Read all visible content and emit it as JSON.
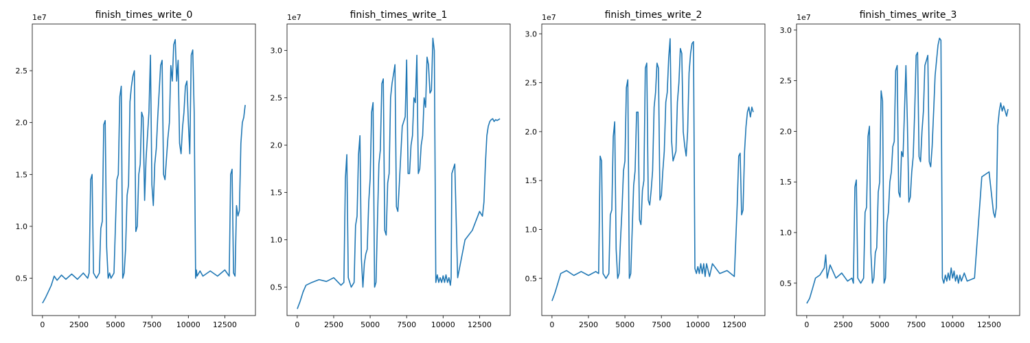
{
  "chart_data": [
    {
      "type": "line",
      "title": "finish_times_write_0",
      "xlim": [
        -700,
        14600
      ],
      "ylim": [
        1400000,
        29500000
      ],
      "xticks": [
        0,
        2500,
        5000,
        7500,
        10000,
        12500
      ],
      "xtick_labels": [
        "0",
        "2500",
        "5000",
        "7500",
        "10000",
        "12500"
      ],
      "yticks": [
        5000000,
        10000000,
        15000000,
        20000000,
        25000000
      ],
      "ytick_labels": [
        "0.5",
        "1.0",
        "1.5",
        "2.0",
        "2.5"
      ],
      "y_offset_label": "1e7",
      "color": "#1f77b4",
      "series": [
        {
          "x": [
            0,
            200,
            400,
            600,
            800,
            1000,
            1300,
            1600,
            2000,
            2400,
            2800,
            3100,
            3200,
            3300,
            3400,
            3500,
            3700,
            3900,
            4000,
            4100,
            4200,
            4300,
            4400,
            4500,
            4600,
            4700,
            4900,
            5100,
            5200,
            5300,
            5400,
            5500,
            5600,
            5700,
            5800,
            5900,
            6000,
            6100,
            6200,
            6300,
            6400,
            6500,
            6600,
            6700,
            6800,
            6900,
            7000,
            7100,
            7300,
            7400,
            7500,
            7600,
            7700,
            7800,
            7900,
            8000,
            8100,
            8200,
            8300,
            8400,
            8600,
            8700,
            8800,
            8900,
            9000,
            9100,
            9200,
            9300,
            9400,
            9500,
            9600,
            9700,
            9800,
            9900,
            10000,
            10100,
            10200,
            10300,
            10400,
            10500,
            10550,
            10600,
            10800,
            11000,
            11500,
            12000,
            12500,
            12800,
            12900,
            13000,
            13100,
            13200,
            13300,
            13400,
            13500,
            13600,
            13700,
            13800,
            13900
          ],
          "y": [
            2600000,
            3100000,
            3700000,
            4300000,
            5200000,
            4800000,
            5300000,
            4900000,
            5400000,
            4900000,
            5500000,
            5000000,
            5500000,
            14500000,
            15000000,
            5500000,
            5000000,
            5500000,
            9800000,
            10500000,
            19800000,
            20200000,
            8000000,
            5000000,
            5500000,
            5000000,
            5500000,
            14500000,
            15000000,
            22500000,
            23500000,
            5000000,
            5500000,
            7800000,
            13000000,
            14000000,
            22000000,
            23500000,
            24500000,
            25000000,
            9500000,
            10000000,
            15000000,
            16000000,
            21000000,
            20500000,
            12500000,
            16500000,
            21000000,
            26500000,
            14000000,
            12000000,
            16000000,
            17500000,
            20500000,
            23000000,
            25500000,
            26000000,
            15000000,
            14500000,
            18500000,
            20000000,
            25500000,
            24000000,
            27500000,
            28000000,
            24000000,
            26000000,
            18000000,
            17000000,
            19500000,
            21000000,
            23500000,
            24000000,
            20000000,
            17000000,
            26500000,
            27000000,
            21000000,
            5000000,
            5800000,
            5200000,
            5700000,
            5200000,
            5700000,
            5200000,
            5800000,
            5200000,
            15000000,
            15500000,
            5500000,
            5200000,
            12000000,
            11000000,
            11500000,
            18000000,
            20000000,
            20500000,
            21700000
          ]
        }
      ]
    },
    {
      "type": "line",
      "title": "finish_times_write_1",
      "xlim": [
        -700,
        14600
      ],
      "ylim": [
        2000000,
        32800000
      ],
      "xticks": [
        0,
        2500,
        5000,
        7500,
        10000,
        12500
      ],
      "xtick_labels": [
        "0",
        "2500",
        "5000",
        "7500",
        "10000",
        "12500"
      ],
      "yticks": [
        5000000,
        10000000,
        15000000,
        20000000,
        25000000,
        30000000
      ],
      "ytick_labels": [
        "0.5",
        "1.0",
        "1.5",
        "2.0",
        "2.5",
        "3.0"
      ],
      "y_offset_label": "1e7",
      "color": "#1f77b4",
      "series": [
        {
          "x": [
            0,
            200,
            400,
            600,
            1000,
            1500,
            2000,
            2500,
            3000,
            3200,
            3300,
            3400,
            3500,
            3700,
            3900,
            4000,
            4100,
            4200,
            4300,
            4400,
            4500,
            4600,
            4700,
            4800,
            4900,
            5000,
            5100,
            5200,
            5300,
            5400,
            5500,
            5600,
            5700,
            5800,
            5900,
            6000,
            6100,
            6200,
            6300,
            6400,
            6500,
            6600,
            6700,
            6800,
            6900,
            7000,
            7100,
            7200,
            7400,
            7500,
            7600,
            7700,
            7800,
            7900,
            8000,
            8100,
            8200,
            8300,
            8400,
            8500,
            8600,
            8700,
            8800,
            8900,
            9000,
            9100,
            9200,
            9300,
            9400,
            9500,
            9600,
            9700,
            9800,
            9900,
            10000,
            10100,
            10200,
            10300,
            10400,
            10500,
            10550,
            10600,
            10800,
            11000,
            11500,
            12000,
            12500,
            12700,
            12800,
            12900,
            13000,
            13100,
            13200,
            13300,
            13400,
            13500,
            13600,
            13700,
            13800,
            13900
          ],
          "y": [
            2700000,
            3500000,
            4500000,
            5200000,
            5500000,
            5800000,
            5600000,
            6000000,
            5200000,
            5500000,
            16500000,
            19000000,
            6000000,
            5000000,
            5500000,
            11500000,
            12500000,
            19000000,
            21000000,
            8000000,
            5000000,
            7500000,
            8500000,
            9000000,
            14000000,
            16500000,
            23500000,
            24500000,
            5000000,
            5500000,
            12000000,
            18000000,
            19500000,
            26500000,
            27000000,
            11000000,
            10500000,
            16000000,
            17000000,
            25000000,
            26500000,
            27500000,
            28500000,
            13500000,
            13000000,
            16000000,
            19000000,
            22000000,
            23000000,
            29000000,
            17000000,
            17000000,
            20000000,
            21000000,
            25000000,
            24500000,
            29500000,
            17000000,
            17500000,
            20000000,
            21000000,
            25000000,
            24000000,
            29300000,
            28500000,
            25500000,
            25800000,
            31300000,
            30000000,
            5500000,
            6300000,
            5500000,
            6000000,
            5500000,
            6200000,
            5500000,
            6300000,
            5500000,
            6000000,
            5200000,
            6000000,
            17000000,
            18000000,
            6000000,
            10000000,
            11000000,
            13000000,
            12500000,
            14000000,
            18000000,
            21000000,
            22000000,
            22500000,
            22700000,
            22800000,
            22500000,
            22700000,
            22600000,
            22700000,
            22800000
          ]
        }
      ]
    },
    {
      "type": "line",
      "title": "finish_times_write_2",
      "xlim": [
        -700,
        14600
      ],
      "ylim": [
        1200000,
        31000000
      ],
      "xticks": [
        0,
        2500,
        5000,
        7500,
        10000,
        12500
      ],
      "xtick_labels": [
        "0",
        "2500",
        "5000",
        "7500",
        "10000",
        "12500"
      ],
      "yticks": [
        5000000,
        10000000,
        15000000,
        20000000,
        25000000,
        30000000
      ],
      "ytick_labels": [
        "0.5",
        "1.0",
        "1.5",
        "2.0",
        "2.5",
        "3.0"
      ],
      "y_offset_label": "1e7",
      "color": "#1f77b4",
      "series": [
        {
          "x": [
            0,
            200,
            400,
            600,
            1000,
            1500,
            2000,
            2500,
            3000,
            3200,
            3300,
            3400,
            3500,
            3700,
            3900,
            4000,
            4100,
            4200,
            4300,
            4400,
            4500,
            4600,
            4700,
            4800,
            4900,
            5000,
            5100,
            5200,
            5300,
            5400,
            5500,
            5600,
            5700,
            5800,
            5900,
            6000,
            6100,
            6200,
            6300,
            6400,
            6500,
            6600,
            6700,
            6800,
            6900,
            7000,
            7100,
            7200,
            7300,
            7400,
            7500,
            7600,
            7700,
            7800,
            7900,
            8000,
            8100,
            8200,
            8300,
            8400,
            8500,
            8600,
            8700,
            8800,
            8900,
            9000,
            9100,
            9200,
            9300,
            9400,
            9500,
            9600,
            9700,
            9800,
            9900,
            10000,
            10100,
            10200,
            10300,
            10400,
            10500,
            10600,
            10800,
            11000,
            11500,
            12000,
            12500,
            12700,
            12800,
            12900,
            13000,
            13100,
            13200,
            13300,
            13400,
            13500,
            13600,
            13700,
            13800
          ],
          "y": [
            2700000,
            3500000,
            4500000,
            5500000,
            5800000,
            5300000,
            5700000,
            5300000,
            5700000,
            5500000,
            17500000,
            17000000,
            5500000,
            5000000,
            5500000,
            11500000,
            12000000,
            19500000,
            21000000,
            8000000,
            5000000,
            5500000,
            9000000,
            12000000,
            16000000,
            17000000,
            24500000,
            25300000,
            5000000,
            5500000,
            10000000,
            14500000,
            16000000,
            22000000,
            22000000,
            11000000,
            10500000,
            14000000,
            15000000,
            26500000,
            27000000,
            13000000,
            12500000,
            14000000,
            16000000,
            22500000,
            24000000,
            27000000,
            26500000,
            13000000,
            13500000,
            16000000,
            18000000,
            23000000,
            24000000,
            27500000,
            29500000,
            19000000,
            17000000,
            17500000,
            18000000,
            23000000,
            25000000,
            28500000,
            28000000,
            20000000,
            18500000,
            17500000,
            20000000,
            26000000,
            28000000,
            29000000,
            29200000,
            6000000,
            5500000,
            6200000,
            5500000,
            6500000,
            5500000,
            6500000,
            5200000,
            6500000,
            5200000,
            6500000,
            5500000,
            5800000,
            5200000,
            12500000,
            17500000,
            17800000,
            11500000,
            12000000,
            18000000,
            20500000,
            22000000,
            22500000,
            21500000,
            22500000,
            22000000
          ]
        }
      ]
    },
    {
      "type": "line",
      "title": "finish_times_write_3",
      "xlim": [
        -700,
        14600
      ],
      "ylim": [
        1800000,
        30600000
      ],
      "xticks": [
        0,
        2500,
        5000,
        7500,
        10000,
        12500
      ],
      "xtick_labels": [
        "0",
        "2500",
        "5000",
        "7500",
        "10000",
        "12500"
      ],
      "yticks": [
        5000000,
        10000000,
        15000000,
        20000000,
        25000000,
        30000000
      ],
      "ytick_labels": [
        "0.5",
        "1.0",
        "1.5",
        "2.0",
        "2.5",
        "3.0"
      ],
      "y_offset_label": "1e7",
      "color": "#1f77b4",
      "series": [
        {
          "x": [
            0,
            200,
            400,
            600,
            900,
            1200,
            1300,
            1400,
            1600,
            2000,
            2400,
            2800,
            3100,
            3200,
            3300,
            3400,
            3500,
            3700,
            3900,
            4000,
            4100,
            4200,
            4300,
            4400,
            4500,
            4600,
            4700,
            4800,
            4900,
            5000,
            5100,
            5200,
            5300,
            5400,
            5500,
            5600,
            5700,
            5800,
            5900,
            6000,
            6100,
            6200,
            6300,
            6400,
            6500,
            6600,
            6700,
            6800,
            6900,
            7000,
            7100,
            7200,
            7300,
            7400,
            7500,
            7600,
            7700,
            7800,
            7900,
            8000,
            8100,
            8200,
            8300,
            8400,
            8500,
            8600,
            8700,
            8800,
            8900,
            9000,
            9100,
            9200,
            9300,
            9400,
            9500,
            9600,
            9700,
            9800,
            9900,
            10000,
            10100,
            10200,
            10300,
            10400,
            10500,
            10600,
            10800,
            11000,
            11500,
            12000,
            12500,
            12800,
            12900,
            13000,
            13100,
            13200,
            13300,
            13400,
            13500,
            13600,
            13700,
            13800
          ],
          "y": [
            3000000,
            3500000,
            4500000,
            5500000,
            5800000,
            6500000,
            7800000,
            5500000,
            6800000,
            5500000,
            6000000,
            5200000,
            5500000,
            5000000,
            14500000,
            15200000,
            5500000,
            5000000,
            5500000,
            12000000,
            12500000,
            19500000,
            20500000,
            8000000,
            5000000,
            5500000,
            8000000,
            8500000,
            14000000,
            15000000,
            24000000,
            23000000,
            5000000,
            5500000,
            11000000,
            12000000,
            15000000,
            16000000,
            18500000,
            19000000,
            26000000,
            26500000,
            14000000,
            13500000,
            18000000,
            17500000,
            22000000,
            26500000,
            21000000,
            13000000,
            13500000,
            16000000,
            17500000,
            22000000,
            27500000,
            27800000,
            17500000,
            17000000,
            20000000,
            22000000,
            26500000,
            27000000,
            27500000,
            17000000,
            16500000,
            18500000,
            22000000,
            25500000,
            27000000,
            28500000,
            29200000,
            29000000,
            5500000,
            5000000,
            5800000,
            5200000,
            6000000,
            5300000,
            6500000,
            5500000,
            6200000,
            5200000,
            5800000,
            5000000,
            5800000,
            5200000,
            6000000,
            5200000,
            5500000,
            15500000,
            16000000,
            12000000,
            11500000,
            12500000,
            20500000,
            22000000,
            22800000,
            22000000,
            22500000,
            22000000,
            21500000,
            22200000
          ]
        }
      ]
    }
  ]
}
